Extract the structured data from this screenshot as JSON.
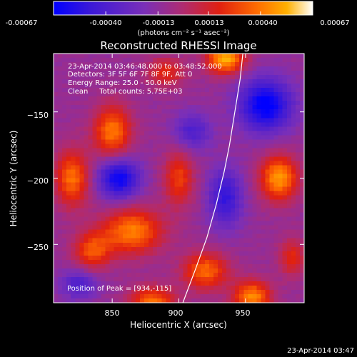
{
  "colorbar": {
    "ticks": [
      "-0.00067",
      "-0.00040",
      "-0.00013",
      "0.00013",
      "0.00040",
      "0.00067"
    ],
    "tick_values": [
      -0.00067,
      -0.0004,
      -0.00013,
      0.00013,
      0.0004,
      0.00067
    ],
    "range": [
      -0.00067,
      0.00067
    ],
    "unit_label": "(photons cm⁻² s⁻¹ asec⁻²)"
  },
  "chart_data": {
    "type": "heatmap",
    "title": "Reconstructed RHESSI Image",
    "xlabel": "Heliocentric X (arcsec)",
    "ylabel": "Heliocentric Y (arcsec)",
    "xlim": [
      806,
      994
    ],
    "ylim": [
      -294,
      -106
    ],
    "x_ticks": [
      850,
      900,
      950
    ],
    "y_ticks": [
      -150,
      -200,
      -250
    ],
    "x_tick_labels": [
      "850",
      "900",
      "950"
    ],
    "y_tick_labels": [
      "−150",
      "−200",
      "−250"
    ],
    "grid": false,
    "colormap": [
      "#0000ff",
      "#3a18d8",
      "#7a2fb8",
      "#b02b70",
      "#e02010",
      "#ff6a00",
      "#ffb000",
      "#ffffff"
    ],
    "sources": [
      {
        "x": 935,
        "y": -110,
        "amp": 0.00064,
        "sx": 10,
        "sy": 8
      },
      {
        "x": 975,
        "y": -200,
        "amp": 0.00058,
        "sx": 10,
        "sy": 12
      },
      {
        "x": 850,
        "y": -165,
        "amp": 0.0005,
        "sx": 10,
        "sy": 14
      },
      {
        "x": 820,
        "y": -200,
        "amp": 0.00048,
        "sx": 9,
        "sy": 15
      },
      {
        "x": 865,
        "y": -240,
        "amp": 0.00052,
        "sx": 16,
        "sy": 12
      },
      {
        "x": 835,
        "y": -255,
        "amp": 0.0004,
        "sx": 10,
        "sy": 10
      },
      {
        "x": 920,
        "y": -270,
        "amp": 0.00046,
        "sx": 12,
        "sy": 10
      },
      {
        "x": 955,
        "y": -290,
        "amp": 0.00055,
        "sx": 10,
        "sy": 9
      },
      {
        "x": 880,
        "y": -295,
        "amp": 0.0005,
        "sx": 12,
        "sy": 9
      },
      {
        "x": 900,
        "y": -200,
        "amp": 0.00036,
        "sx": 8,
        "sy": 15
      },
      {
        "x": 890,
        "y": -120,
        "amp": 0.0003,
        "sx": 10,
        "sy": 8
      },
      {
        "x": 985,
        "y": -260,
        "amp": 0.0003,
        "sx": 7,
        "sy": 10
      }
    ],
    "sinks": [
      {
        "x": 965,
        "y": -145,
        "amp": 0.0006,
        "sx": 14,
        "sy": 14
      },
      {
        "x": 855,
        "y": -200,
        "amp": 0.00055,
        "sx": 11,
        "sy": 11
      },
      {
        "x": 935,
        "y": -215,
        "amp": 0.0004,
        "sx": 9,
        "sy": 16
      },
      {
        "x": 910,
        "y": -165,
        "amp": 0.0003,
        "sx": 10,
        "sy": 10
      },
      {
        "x": 825,
        "y": -280,
        "amp": 0.0003,
        "sx": 10,
        "sy": 8
      }
    ],
    "limb": [
      [
        903,
        -294
      ],
      [
        912,
        -270
      ],
      [
        921,
        -245
      ],
      [
        928,
        -220
      ],
      [
        934,
        -195
      ],
      [
        938,
        -175
      ],
      [
        942,
        -150
      ],
      [
        946,
        -125
      ],
      [
        948,
        -106
      ]
    ]
  },
  "annotations": {
    "time_range": "23-Apr-2014 03:46:48.000 to 03:48:52.000",
    "detectors": "Detectors: 3F 5F 6F 7F 8F 9F, Att 0",
    "energy": "Energy Range: 25.0 - 50.0 keV",
    "method_counts": "Clean     Total counts: 5.75E+03",
    "peak": "Position of Peak = [934,-115]"
  },
  "footer": {
    "timestamp": "23-Apr-2014 03:47"
  }
}
